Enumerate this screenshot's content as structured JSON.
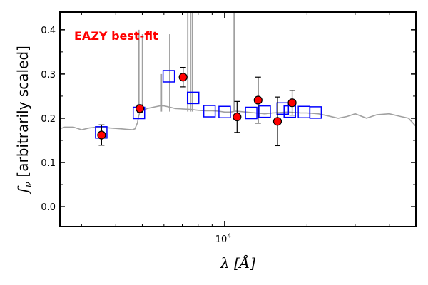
{
  "chart_data": {
    "type": "scatter",
    "title": "",
    "xlabel": "λ [Å]",
    "ylabel": "fν [arbitrarily scaled]",
    "ylabel_parts": {
      "symbol": "f",
      "sub": "ν",
      "text": " [arbitrarily scaled]"
    },
    "xscale": "log",
    "xlim": [
      2500,
      50000
    ],
    "ylim": [
      -0.045,
      0.44
    ],
    "xticks": [
      {
        "value": 10000,
        "base": "10",
        "exp": "4"
      }
    ],
    "yticks": [
      0.0,
      0.1,
      0.2,
      0.3,
      0.4
    ],
    "ytick_labels": [
      "0.0",
      "0.1",
      "0.2",
      "0.3",
      "0.4"
    ],
    "grid": false,
    "annotation": {
      "text": "EAZY best-fit",
      "color": "#ff0000"
    },
    "series": [
      {
        "kind": "template",
        "style": "line",
        "color": "#a0a0a0",
        "x": [
          2500,
          2600,
          2800,
          3000,
          3200,
          3400,
          3500,
          3600,
          3800,
          4000,
          4200,
          4400,
          4600,
          4700,
          4800,
          4850,
          4900,
          5000,
          5200,
          5500,
          5800,
          6000,
          6300,
          6600,
          7000,
          7500,
          8000,
          8500,
          9000,
          9500,
          10000,
          10500,
          11000,
          12000,
          13000,
          14000,
          15000,
          16000,
          17000,
          18000,
          19000,
          20000,
          22000,
          24000,
          26000,
          28000,
          30000,
          33000,
          36000,
          40000,
          44000,
          47000,
          50000
        ],
        "y": [
          0.176,
          0.18,
          0.18,
          0.174,
          0.178,
          0.18,
          0.18,
          0.18,
          0.178,
          0.177,
          0.176,
          0.175,
          0.174,
          0.176,
          0.19,
          0.205,
          0.214,
          0.216,
          0.222,
          0.225,
          0.228,
          0.228,
          0.225,
          0.222,
          0.221,
          0.22,
          0.218,
          0.217,
          0.217,
          0.216,
          0.214,
          0.214,
          0.216,
          0.214,
          0.212,
          0.21,
          0.212,
          0.213,
          0.214,
          0.213,
          0.212,
          0.212,
          0.21,
          0.205,
          0.2,
          0.204,
          0.21,
          0.2,
          0.208,
          0.21,
          0.204,
          0.2,
          0.182
        ]
      },
      {
        "kind": "emission_lines",
        "style": "spikes",
        "color": "#a0a0a0",
        "lines": [
          {
            "x": 4860,
            "y": 0.4
          },
          {
            "x": 5007,
            "y": 0.39
          },
          {
            "x": 5876,
            "y": 0.3
          },
          {
            "x": 6300,
            "y": 0.39
          },
          {
            "x": 7330,
            "y": 0.44
          },
          {
            "x": 7500,
            "y": 0.44
          },
          {
            "x": 7620,
            "y": 0.44
          },
          {
            "x": 10830,
            "y": 0.44
          }
        ]
      },
      {
        "kind": "model_photometry",
        "style": "open-square",
        "color": "#0000ff",
        "x": [
          3540,
          4860,
          6250,
          7670,
          8800,
          10000,
          12500,
          14000,
          16300,
          17300,
          19500,
          21500
        ],
        "y": [
          0.168,
          0.212,
          0.295,
          0.246,
          0.216,
          0.214,
          0.212,
          0.215,
          0.222,
          0.215,
          0.214,
          0.213
        ]
      },
      {
        "kind": "observed_photometry",
        "style": "filled-circle-errorbar",
        "color": "#ff0000",
        "edgecolor": "#000000",
        "points": [
          {
            "x": 3550,
            "y": 0.162,
            "err": 0.023
          },
          {
            "x": 4900,
            "y": 0.222,
            "err": 0.008
          },
          {
            "x": 7050,
            "y": 0.293,
            "err": 0.022
          },
          {
            "x": 11100,
            "y": 0.203,
            "err": 0.035
          },
          {
            "x": 13250,
            "y": 0.241,
            "err": 0.052
          },
          {
            "x": 15600,
            "y": 0.193,
            "err": 0.055
          },
          {
            "x": 17650,
            "y": 0.235,
            "err": 0.028
          }
        ]
      }
    ]
  }
}
